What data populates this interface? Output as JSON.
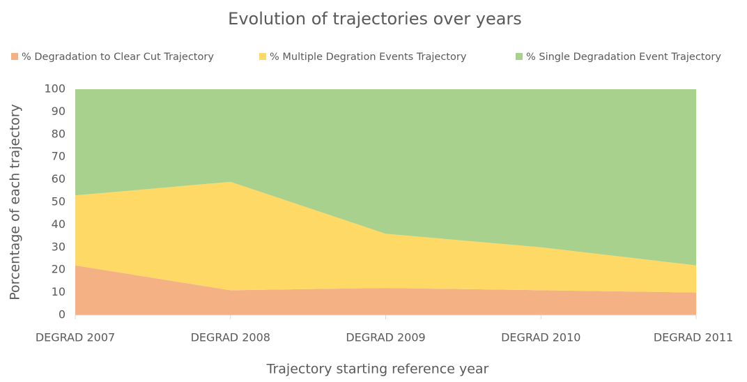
{
  "chart_data": {
    "type": "area",
    "stacked": true,
    "title": "Evolution of trajectories over years",
    "x_label": "Trajectory starting reference year",
    "y_label": "Porcentage of each trajectory",
    "categories": [
      "DEGRAD 2007",
      "DEGRAD 2008",
      "DEGRAD 2009",
      "DEGRAD 2010",
      "DEGRAD 2011"
    ],
    "series": [
      {
        "name": "% Degradation to Clear Cut Trajectory",
        "color": "#f4b183",
        "values": [
          22,
          11,
          12,
          11,
          10
        ]
      },
      {
        "name": "% Multiple Degration Events Trajectory",
        "color": "#ffd966",
        "values": [
          31,
          48,
          24,
          19,
          12
        ]
      },
      {
        "name": "% Single Degradation Event Trajectory",
        "color": "#a9d18e",
        "values": [
          47,
          41,
          64,
          70,
          78
        ]
      }
    ],
    "ylim": [
      0,
      100
    ],
    "yticks": [
      0,
      10,
      20,
      30,
      40,
      50,
      60,
      70,
      80,
      90,
      100
    ],
    "legend": "top",
    "grid": false
  }
}
